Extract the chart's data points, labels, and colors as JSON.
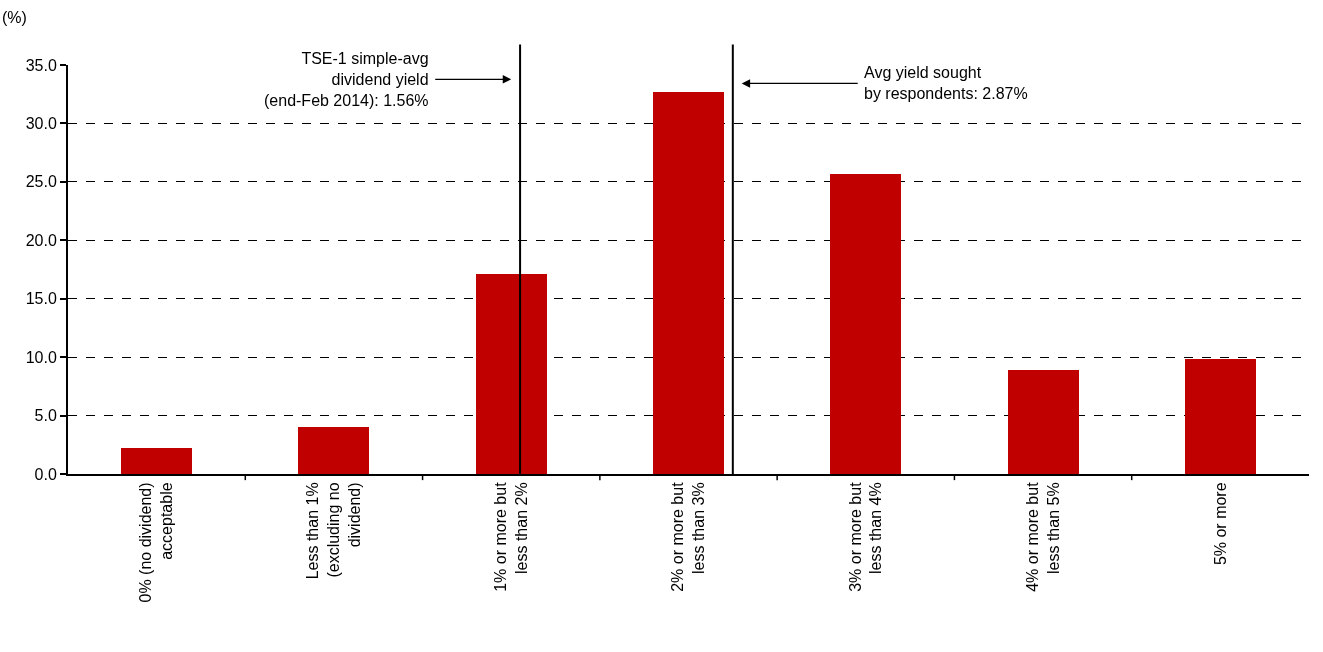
{
  "chart_data": {
    "type": "bar",
    "ylabel": "(%)",
    "categories": [
      "0% (no dividend) acceptable",
      "Less than 1% (excluding no dividend)",
      "1% or more but less than 2%",
      "2% or more but less than 3%",
      "3% or more but less than 4%",
      "4% or more but less than 5%",
      "5% or more"
    ],
    "values": [
      2.2,
      4.0,
      17.1,
      32.7,
      25.7,
      8.9,
      9.8
    ],
    "color": "#c00000",
    "ylim": [
      0,
      35
    ],
    "yticks": [
      {
        "value": 0,
        "label": "0.0"
      },
      {
        "value": 5,
        "label": "5.0"
      },
      {
        "value": 10,
        "label": "10.0"
      },
      {
        "value": 15,
        "label": "15.0"
      },
      {
        "value": 20,
        "label": "20.0"
      },
      {
        "value": 25,
        "label": "25.0"
      },
      {
        "value": 30,
        "label": "30.0"
      },
      {
        "value": 35,
        "label": "35.0"
      }
    ],
    "grid": "y",
    "ref_lines": [
      {
        "axis": "x",
        "value": "1% or more but less than 2%",
        "label": "TSE-1 simple-avg\ndividend yield\n(end-Feb 2014): 1.56%",
        "color": "#000000",
        "line_style": "solid"
      },
      {
        "axis": "x",
        "value": "2% or more but less than 3%",
        "label": "Avg yield sought\nby respondents: 2.87%",
        "color": "#000000",
        "line_style": "solid"
      }
    ]
  }
}
